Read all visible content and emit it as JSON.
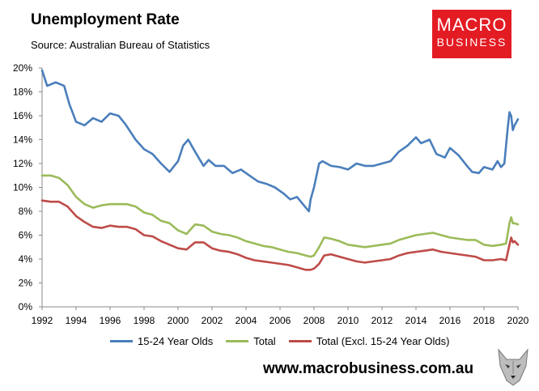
{
  "header": {
    "title": "Unemployment Rate",
    "source": "Source: Australian Bureau of Statistics"
  },
  "logo": {
    "line1": "MACRO",
    "line2": "BUSINESS"
  },
  "footer": {
    "website": "www.macrobusiness.com.au"
  },
  "colors": {
    "youth": "#4a7ebb",
    "total": "#9bbb59",
    "excl": "#be4b48",
    "logo": "#e31b23"
  },
  "chart_data": {
    "type": "line",
    "xlim": [
      1992,
      2020
    ],
    "ylim": [
      0,
      20
    ],
    "x_ticks": [
      "1992",
      "1994",
      "1996",
      "1998",
      "2000",
      "2002",
      "2004",
      "2006",
      "2008",
      "2010",
      "2012",
      "2014",
      "2016",
      "2018",
      "2020"
    ],
    "y_ticks": [
      "0%",
      "2%",
      "4%",
      "6%",
      "8%",
      "10%",
      "12%",
      "14%",
      "16%",
      "18%",
      "20%"
    ],
    "grid": false,
    "legend_position": "bottom",
    "series": [
      {
        "name": "15-24 Year Olds",
        "x": [
          1992.0,
          1992.3,
          1992.8,
          1993.3,
          1993.6,
          1994.0,
          1994.5,
          1995.0,
          1995.5,
          1996.0,
          1996.5,
          1996.9,
          1997.5,
          1998.0,
          1998.5,
          1999.0,
          1999.5,
          2000.0,
          2000.3,
          2000.6,
          2001.0,
          2001.5,
          2001.8,
          2002.2,
          2002.7,
          2003.2,
          2003.7,
          2004.2,
          2004.7,
          2005.2,
          2005.7,
          2006.2,
          2006.6,
          2007.0,
          2007.4,
          2007.7,
          2007.8,
          2008.0,
          2008.3,
          2008.5,
          2009.0,
          2009.5,
          2010.0,
          2010.5,
          2011.0,
          2011.5,
          2012.0,
          2012.5,
          2013.0,
          2013.5,
          2014.0,
          2014.3,
          2014.8,
          2015.2,
          2015.7,
          2016.0,
          2016.5,
          2017.0,
          2017.3,
          2017.7,
          2018.0,
          2018.5,
          2018.8,
          2019.0,
          2019.2,
          2019.4,
          2019.5,
          2019.6,
          2019.7,
          2019.8,
          2020.0
        ],
        "values": [
          19.8,
          18.5,
          18.8,
          18.5,
          17.0,
          15.5,
          15.2,
          15.8,
          15.5,
          16.2,
          16.0,
          15.3,
          14.0,
          13.2,
          12.8,
          12.0,
          11.3,
          12.2,
          13.5,
          14.0,
          13.0,
          11.8,
          12.3,
          11.8,
          11.8,
          11.2,
          11.5,
          11.0,
          10.5,
          10.3,
          10.0,
          9.5,
          9.0,
          9.2,
          8.5,
          8.0,
          9.0,
          10.0,
          12.0,
          12.2,
          11.8,
          11.7,
          11.5,
          12.0,
          11.8,
          11.8,
          12.0,
          12.2,
          13.0,
          13.5,
          14.2,
          13.7,
          14.0,
          12.8,
          12.5,
          13.3,
          12.7,
          11.8,
          11.3,
          11.2,
          11.7,
          11.5,
          12.2,
          11.7,
          12.0,
          15.0,
          16.3,
          16.0,
          14.8,
          15.2,
          15.7
        ]
      },
      {
        "name": "Total",
        "x": [
          1992.0,
          1992.5,
          1993.0,
          1993.5,
          1994.0,
          1994.5,
          1995.0,
          1995.5,
          1996.0,
          1996.5,
          1997.0,
          1997.5,
          1998.0,
          1998.5,
          1999.0,
          1999.5,
          2000.0,
          2000.5,
          2001.0,
          2001.5,
          2002.0,
          2002.5,
          2003.0,
          2003.5,
          2004.0,
          2004.5,
          2005.0,
          2005.5,
          2006.0,
          2006.5,
          2007.0,
          2007.5,
          2007.8,
          2008.0,
          2008.3,
          2008.6,
          2009.0,
          2009.5,
          2010.0,
          2010.5,
          2011.0,
          2011.5,
          2012.0,
          2012.5,
          2013.0,
          2013.5,
          2014.0,
          2014.5,
          2015.0,
          2015.5,
          2016.0,
          2016.5,
          2017.0,
          2017.5,
          2018.0,
          2018.5,
          2019.0,
          2019.3,
          2019.5,
          2019.6,
          2019.7,
          2019.8,
          2020.0
        ],
        "values": [
          11.0,
          11.0,
          10.8,
          10.2,
          9.2,
          8.6,
          8.3,
          8.5,
          8.6,
          8.6,
          8.6,
          8.4,
          7.9,
          7.7,
          7.2,
          7.0,
          6.4,
          6.1,
          6.9,
          6.8,
          6.3,
          6.1,
          6.0,
          5.8,
          5.5,
          5.3,
          5.1,
          5.0,
          4.8,
          4.6,
          4.5,
          4.3,
          4.2,
          4.3,
          5.0,
          5.8,
          5.7,
          5.5,
          5.2,
          5.1,
          5.0,
          5.1,
          5.2,
          5.3,
          5.6,
          5.8,
          6.0,
          6.1,
          6.2,
          6.0,
          5.8,
          5.7,
          5.6,
          5.6,
          5.2,
          5.1,
          5.2,
          5.3,
          7.0,
          7.5,
          7.0,
          7.0,
          6.9
        ]
      },
      {
        "name": "Total (Excl. 15-24 Year Olds)",
        "x": [
          1992.0,
          1992.5,
          1993.0,
          1993.5,
          1994.0,
          1994.5,
          1995.0,
          1995.5,
          1996.0,
          1996.5,
          1997.0,
          1997.5,
          1998.0,
          1998.5,
          1999.0,
          1999.5,
          2000.0,
          2000.5,
          2001.0,
          2001.5,
          2002.0,
          2002.5,
          2003.0,
          2003.5,
          2004.0,
          2004.5,
          2005.0,
          2005.5,
          2006.0,
          2006.5,
          2007.0,
          2007.5,
          2007.8,
          2008.0,
          2008.3,
          2008.6,
          2009.0,
          2009.5,
          2010.0,
          2010.5,
          2011.0,
          2011.5,
          2012.0,
          2012.5,
          2013.0,
          2013.5,
          2014.0,
          2014.5,
          2015.0,
          2015.5,
          2016.0,
          2016.5,
          2017.0,
          2017.5,
          2018.0,
          2018.5,
          2019.0,
          2019.3,
          2019.5,
          2019.6,
          2019.7,
          2019.8,
          2020.0
        ],
        "values": [
          8.9,
          8.8,
          8.8,
          8.4,
          7.6,
          7.1,
          6.7,
          6.6,
          6.8,
          6.7,
          6.7,
          6.5,
          6.0,
          5.9,
          5.5,
          5.2,
          4.9,
          4.8,
          5.4,
          5.4,
          4.9,
          4.7,
          4.6,
          4.4,
          4.1,
          3.9,
          3.8,
          3.7,
          3.6,
          3.5,
          3.3,
          3.1,
          3.1,
          3.2,
          3.6,
          4.3,
          4.4,
          4.2,
          4.0,
          3.8,
          3.7,
          3.8,
          3.9,
          4.0,
          4.3,
          4.5,
          4.6,
          4.7,
          4.8,
          4.6,
          4.5,
          4.4,
          4.3,
          4.2,
          3.9,
          3.9,
          4.0,
          3.9,
          5.2,
          5.8,
          5.4,
          5.5,
          5.2
        ]
      }
    ]
  }
}
